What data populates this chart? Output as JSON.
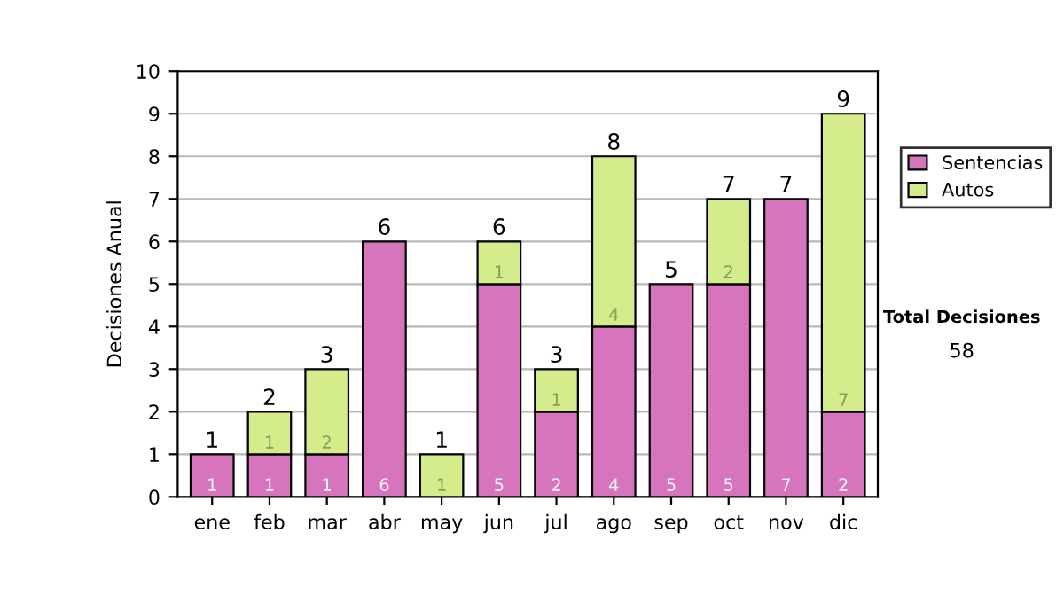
{
  "chart_data": {
    "type": "bar",
    "stacked": true,
    "ylabel": "Decisiones Anual",
    "categories": [
      "ene",
      "feb",
      "mar",
      "abr",
      "may",
      "jun",
      "jul",
      "ago",
      "sep",
      "oct",
      "nov",
      "dic"
    ],
    "series": [
      {
        "name": "Sentencias",
        "color": "#d674be",
        "values": [
          1,
          1,
          1,
          6,
          0,
          5,
          2,
          4,
          5,
          5,
          7,
          2
        ],
        "value_labels": [
          "1",
          "1",
          "1",
          "6",
          null,
          "5",
          "2",
          "4",
          "5",
          "5",
          "7",
          "2"
        ]
      },
      {
        "name": "Autos",
        "color": "#d4ec8c",
        "values": [
          0,
          1,
          2,
          0,
          1,
          1,
          1,
          4,
          0,
          2,
          0,
          7
        ],
        "value_labels": [
          null,
          "1",
          "2",
          null,
          "1",
          "1",
          "1",
          "4",
          null,
          "2",
          null,
          "7"
        ]
      }
    ],
    "totals": [
      "1",
      "2",
      "3",
      "6",
      "1",
      "6",
      "3",
      "8",
      "5",
      "7",
      "7",
      "9"
    ],
    "ylim": [
      0,
      10
    ],
    "yticks": [
      0,
      1,
      2,
      3,
      4,
      5,
      6,
      7,
      8,
      9,
      10
    ],
    "grid": "y",
    "legend": "right",
    "annotations": [
      "Total Decisiones",
      "58"
    ]
  }
}
